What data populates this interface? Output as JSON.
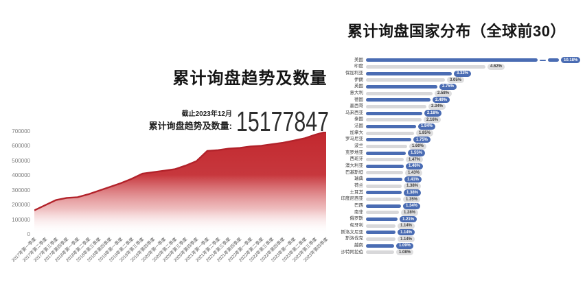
{
  "page": {
    "background": "#ffffff"
  },
  "chart_data": [
    {
      "type": "area",
      "title": "累计询盘趋势及数量",
      "as_of_label": "截止2023年12月",
      "total_label": "累计询盘趋势及数量:",
      "total_value": "15177847",
      "x": [
        "2017年第一季度",
        "2017年第二季度",
        "2017年第三季度",
        "2017年第四季度",
        "2018年第一季度",
        "2018年第二季度",
        "2018年第三季度",
        "2018年第四季度",
        "2019年第一季度",
        "2019年第二季度",
        "2019年第三季度",
        "2019年第四季度",
        "2020年第一季度",
        "2020年第二季度",
        "2020年第三季度",
        "2020年第四季度",
        "2021年第一季度",
        "2021年第二季度",
        "2021年第三季度",
        "2021年第四季度",
        "2022年第一季度",
        "2022年第二季度",
        "2022年第三季度",
        "2022年第四季度",
        "2023年第一季度",
        "2023年第二季度",
        "2023年第三季度",
        "2023年第四季度"
      ],
      "values": [
        165000,
        200000,
        235000,
        250000,
        255000,
        275000,
        300000,
        325000,
        350000,
        380000,
        415000,
        425000,
        435000,
        445000,
        470000,
        500000,
        570000,
        575000,
        585000,
        590000,
        600000,
        605000,
        615000,
        625000,
        640000,
        655000,
        680000,
        700000
      ],
      "ylim": [
        0,
        700000
      ],
      "yticks": [
        0,
        100000,
        200000,
        300000,
        400000,
        500000,
        600000,
        700000
      ],
      "grid": false,
      "legend": "none",
      "area_color": "#c2282e",
      "line_color": "#b2222a"
    },
    {
      "type": "bar",
      "orientation": "horizontal",
      "title": "累计询盘国家分布（全球前30）",
      "categories": [
        "美国",
        "印度",
        "保加利亚",
        "伊朗",
        "英国",
        "意大利",
        "德国",
        "墨西哥",
        "马来西亚",
        "泰国",
        "法国",
        "加拿大",
        "罗马尼亚",
        "波兰",
        "克罗地亚",
        "西班牙",
        "澳大利亚",
        "巴基斯坦",
        "瑞典",
        "荷兰",
        "土耳其",
        "印度尼西亚",
        "巴西",
        "南非",
        "俄罗斯",
        "匈牙利",
        "斯洛文尼亚",
        "斯洛伐克",
        "越南",
        "沙特阿拉伯"
      ],
      "values": [
        10.18,
        4.62,
        3.32,
        3.05,
        2.75,
        2.58,
        2.49,
        2.34,
        2.18,
        2.16,
        1.94,
        1.85,
        1.75,
        1.6,
        1.55,
        1.47,
        1.46,
        1.43,
        1.41,
        1.38,
        1.38,
        1.35,
        1.34,
        1.28,
        1.21,
        1.14,
        1.14,
        1.14,
        1.09,
        1.08
      ],
      "value_suffix": "%",
      "first_bar_axis_break": true,
      "bar_color_odd": "#4a6cb3",
      "bar_color_even": "#d8d8da",
      "pill_bg_odd": "#4a6cb3",
      "pill_bg_even": "#dededf",
      "pill_text_odd": "#ffffff",
      "pill_text_even": "#3c3c3c"
    }
  ]
}
